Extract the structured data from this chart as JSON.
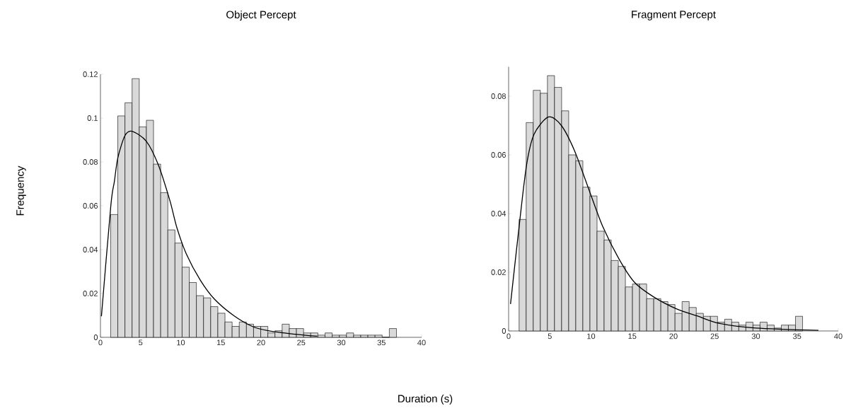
{
  "chart_data": [
    {
      "type": "histogram",
      "title": "Object Percept",
      "ylabel": "Frequency",
      "xlim": [
        0,
        40
      ],
      "xticks": [
        0,
        5,
        10,
        15,
        20,
        25,
        30,
        35,
        40
      ],
      "ylim": [
        0,
        0.12
      ],
      "yticks": [
        0,
        0.02,
        0.04,
        0.06,
        0.08,
        0.1,
        0.12
      ],
      "series": [
        {
          "type": "histogram",
          "color": "#d9d9d9",
          "bins": [
            1.27,
            2.16,
            3.05,
            3.94,
            4.83,
            5.72,
            6.61,
            7.5,
            8.39,
            9.28,
            10.17,
            11.06,
            11.95,
            12.84,
            13.73,
            14.62,
            15.51,
            16.4,
            17.29,
            18.18,
            19.07,
            19.96,
            20.85,
            21.74,
            22.63,
            23.52,
            24.41,
            25.3,
            26.19,
            27.08,
            27.97,
            28.86,
            29.75,
            30.64,
            31.53,
            32.42,
            33.31,
            34.2,
            35.09,
            35.98,
            36.87
          ],
          "values": [
            0.056,
            0.101,
            0.107,
            0.118,
            0.096,
            0.099,
            0.079,
            0.066,
            0.049,
            0.043,
            0.032,
            0.025,
            0.019,
            0.018,
            0.014,
            0.011,
            0.007,
            0.005,
            0.007,
            0.006,
            0.005,
            0.005,
            0.002,
            0.003,
            0.006,
            0.004,
            0.004,
            0.002,
            0.002,
            0.001,
            0.002,
            0.001,
            0.001,
            0.002,
            0.001,
            0.001,
            0.001,
            0.001,
            0,
            0.004
          ]
        },
        {
          "type": "line",
          "color": "#000000",
          "line_style": "solid",
          "x": [
            0.12,
            1.29,
            1.73,
            2.17,
            3.05,
            3.93,
            5.7,
            7.17,
            8.63,
            9.52,
            10.7,
            12.45,
            14.2,
            16.6,
            18.9,
            20.9,
            24,
            27
          ],
          "values": [
            0.0096,
            0.06,
            0.071,
            0.082,
            0.092,
            0.094,
            0.0895,
            0.079,
            0.0626,
            0.05,
            0.038,
            0.026,
            0.0174,
            0.0099,
            0.005,
            0.003,
            0.0015,
            0.0005
          ]
        }
      ]
    },
    {
      "type": "histogram",
      "title": "Fragment Percept",
      "xlabel": "Duration (s)",
      "xlim": [
        0,
        40
      ],
      "xticks": [
        0,
        5,
        10,
        15,
        20,
        25,
        30,
        35,
        40
      ],
      "ylim": [
        0,
        0.09
      ],
      "yticks": [
        0,
        0.02,
        0.04,
        0.06,
        0.08
      ],
      "series": [
        {
          "type": "histogram",
          "color": "#d9d9d9",
          "bins": [
            1.27,
            2.13,
            2.99,
            3.85,
            4.71,
            5.57,
            6.43,
            7.29,
            8.15,
            9.01,
            9.87,
            10.73,
            11.59,
            12.45,
            13.31,
            14.17,
            15.03,
            15.89,
            16.75,
            17.61,
            18.47,
            19.33,
            20.19,
            21.05,
            21.91,
            22.77,
            23.63,
            24.49,
            25.35,
            26.21,
            27.07,
            27.93,
            28.79,
            29.65,
            30.51,
            31.37,
            32.23,
            33.09,
            33.95,
            34.81,
            35.67
          ],
          "values": [
            0.038,
            0.071,
            0.082,
            0.081,
            0.087,
            0.083,
            0.075,
            0.06,
            0.058,
            0.049,
            0.046,
            0.034,
            0.031,
            0.024,
            0.022,
            0.015,
            0.016,
            0.016,
            0.011,
            0.011,
            0.01,
            0.009,
            0.006,
            0.01,
            0.008,
            0.006,
            0.005,
            0.005,
            0.003,
            0.004,
            0.003,
            0.002,
            0.003,
            0.002,
            0.003,
            0.002,
            0.001,
            0.002,
            0.002,
            0.005
          ]
        },
        {
          "type": "line",
          "color": "#000000",
          "line_style": "solid",
          "x": [
            0.23,
            1.33,
            2.18,
            3.08,
            4.83,
            6.4,
            8.0,
            9.7,
            11.4,
            13.4,
            15.3,
            17.6,
            20.4,
            23,
            25.5,
            30,
            37.6
          ],
          "values": [
            0.0092,
            0.037,
            0.0566,
            0.067,
            0.0729,
            0.07,
            0.0614,
            0.0485,
            0.0357,
            0.0245,
            0.0165,
            0.0116,
            0.0075,
            0.005,
            0.0026,
            0.001,
            0.0002
          ]
        }
      ]
    }
  ]
}
